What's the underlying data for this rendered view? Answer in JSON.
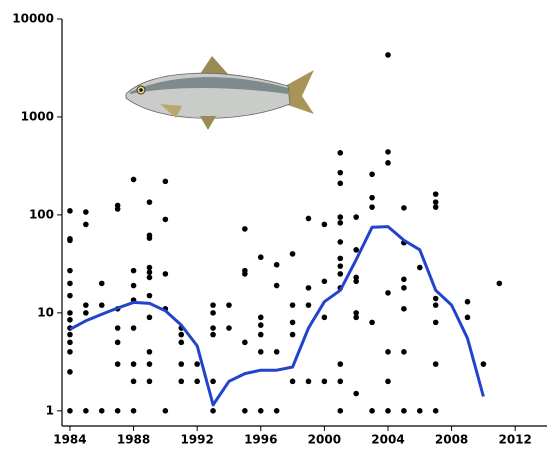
{
  "chart_data": {
    "type": "scatter",
    "log_y": true,
    "grid": false,
    "xlim": [
      1983.5,
      2014
    ],
    "ylim": [
      0.7,
      10000
    ],
    "xticks": [
      1984,
      1988,
      1992,
      1996,
      2000,
      2004,
      2008,
      2012
    ],
    "yticks": [
      1,
      10,
      100,
      1000,
      10000
    ],
    "series": [
      {
        "kind": "scatter",
        "color": "#000000",
        "x": [
          1984,
          1984,
          1984,
          1984,
          1984,
          1984,
          1984,
          1984,
          1984,
          1984,
          1984,
          1984,
          1984,
          1984,
          1985,
          1985,
          1985,
          1985,
          1985,
          1986,
          1986,
          1986,
          1987,
          1987,
          1987,
          1987,
          1987,
          1987,
          1987,
          1988,
          1988,
          1988,
          1988,
          1988,
          1988,
          1988,
          1988,
          1989,
          1989,
          1989,
          1989,
          1989,
          1989,
          1989,
          1989,
          1989,
          1989,
          1989,
          1990,
          1990,
          1990,
          1990,
          1990,
          1991,
          1991,
          1991,
          1991,
          1991,
          1992,
          1992,
          1993,
          1993,
          1993,
          1993,
          1993,
          1993,
          1994,
          1994,
          1995,
          1995,
          1995,
          1995,
          1995,
          1996,
          1996,
          1996,
          1996,
          1996,
          1996,
          1997,
          1997,
          1997,
          1997,
          1998,
          1998,
          1998,
          1998,
          1998,
          1999,
          1999,
          1999,
          1999,
          2000,
          2000,
          2000,
          2000,
          2001,
          2001,
          2001,
          2001,
          2001,
          2001,
          2001,
          2001,
          2001,
          2001,
          2001,
          2001,
          2001,
          2002,
          2002,
          2002,
          2002,
          2002,
          2002,
          2002,
          2003,
          2003,
          2003,
          2003,
          2003,
          2004,
          2004,
          2004,
          2004,
          2004,
          2004,
          2004,
          2005,
          2005,
          2005,
          2005,
          2005,
          2005,
          2005,
          2006,
          2006,
          2007,
          2007,
          2007,
          2007,
          2007,
          2007,
          2007,
          2007,
          2009,
          2009,
          2010,
          2011
        ],
        "values": [
          110,
          57,
          55,
          27,
          20,
          15,
          10,
          8.5,
          7,
          6,
          5,
          4,
          2.5,
          1,
          107,
          80,
          12,
          10,
          1,
          20,
          12,
          1,
          125,
          115,
          11,
          7,
          5,
          3,
          1,
          230,
          27,
          19,
          13.5,
          7,
          3,
          2,
          1,
          135,
          62,
          58,
          29,
          26,
          23,
          15,
          9,
          4,
          3,
          2,
          220,
          90,
          25,
          11,
          1,
          7,
          6,
          5,
          3,
          2,
          3,
          2,
          12,
          10,
          7,
          6,
          2,
          1,
          12,
          7,
          72,
          27,
          25,
          5,
          1,
          37,
          9,
          7.5,
          6,
          4,
          1,
          31,
          19,
          4,
          1,
          40,
          12,
          8,
          6,
          2,
          92,
          18,
          12,
          2,
          80,
          21,
          9,
          2,
          430,
          270,
          210,
          95,
          83,
          53,
          36,
          30,
          25,
          18,
          3,
          2,
          1,
          95,
          44,
          23,
          21,
          10,
          9,
          1.5,
          260,
          150,
          120,
          8,
          1,
          4300,
          440,
          340,
          16,
          4,
          2,
          1,
          118,
          52,
          22,
          18,
          11,
          4,
          1,
          29,
          1,
          163,
          135,
          120,
          14,
          12,
          8,
          3,
          1,
          13,
          9,
          3,
          20
        ]
      },
      {
        "kind": "line",
        "color": "#2244cc",
        "x": [
          1984,
          1985,
          1986,
          1987,
          1988,
          1989,
          1990,
          1991,
          1992,
          1993,
          1994,
          1995,
          1996,
          1997,
          1998,
          1999,
          2000,
          2001,
          2002,
          2003,
          2004,
          2005,
          2006,
          2007,
          2008,
          2009,
          2010
        ],
        "values": [
          6.8,
          8.3,
          9.7,
          11.2,
          12.8,
          12.5,
          10.5,
          7.5,
          4.6,
          1.15,
          2.0,
          2.4,
          2.6,
          2.6,
          2.8,
          7,
          13,
          17,
          35,
          75,
          76,
          55,
          44,
          17,
          12,
          5.5,
          1.4
        ]
      }
    ]
  }
}
